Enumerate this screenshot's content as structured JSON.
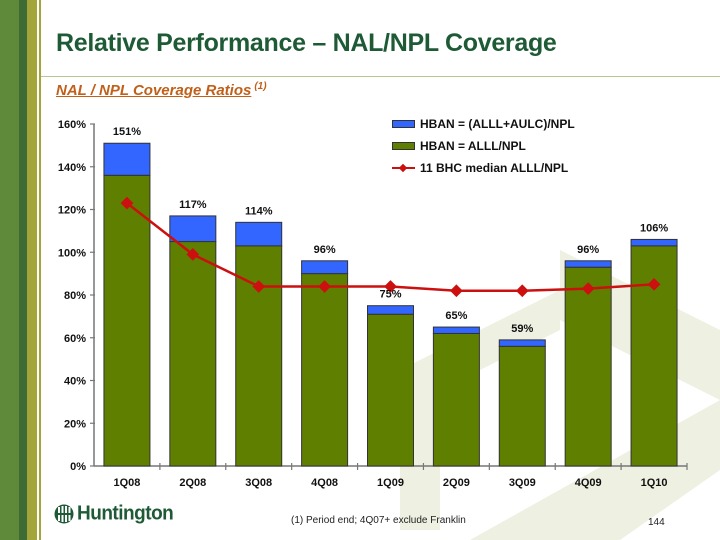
{
  "page": {
    "title": "Relative Performance – NAL/NPL Coverage",
    "subtitle": "NAL / NPL Coverage Ratios",
    "subtitle_note": "(1)",
    "footnote": "(1)  Period end; 4Q07+ exclude Franklin",
    "page_number": "144",
    "logo_text": "Huntington"
  },
  "colors": {
    "total_bar": "#3366ff",
    "allll_bar": "#5f7f00",
    "median_line": "#cc1010",
    "title": "#1e5a36",
    "subtitle": "#c0601a"
  },
  "chart_data": {
    "type": "bar",
    "stacked": true,
    "title": "NAL / NPL Coverage Ratios",
    "xlabel": "",
    "ylabel": "",
    "ylim": [
      0,
      160
    ],
    "yticks": [
      0,
      20,
      40,
      60,
      80,
      100,
      120,
      140,
      160
    ],
    "ytick_labels": [
      "0%",
      "20%",
      "40%",
      "60%",
      "80%",
      "100%",
      "120%",
      "140%",
      "160%"
    ],
    "grid": false,
    "legend_position": "top-right",
    "categories": [
      "1Q08",
      "2Q08",
      "3Q08",
      "4Q08",
      "1Q09",
      "2Q09",
      "3Q09",
      "4Q09",
      "1Q10"
    ],
    "series": [
      {
        "name": "HBAN = (ALLL+AULC)/NPL",
        "type": "bar",
        "values": [
          151,
          117,
          114,
          96,
          75,
          65,
          59,
          96,
          106
        ]
      },
      {
        "name": "HBAN = ALLL/NPL",
        "type": "bar",
        "values": [
          136,
          105,
          103,
          90,
          71,
          62,
          56,
          93,
          103
        ]
      },
      {
        "name": "11 BHC median ALLL/NPL",
        "type": "line",
        "values": [
          123,
          99,
          84,
          84,
          84,
          82,
          82,
          83,
          85
        ]
      }
    ],
    "data_labels": [
      "151%",
      "117%",
      "114%",
      "96%",
      "75%",
      "65%",
      "59%",
      "96%",
      "106%"
    ]
  }
}
